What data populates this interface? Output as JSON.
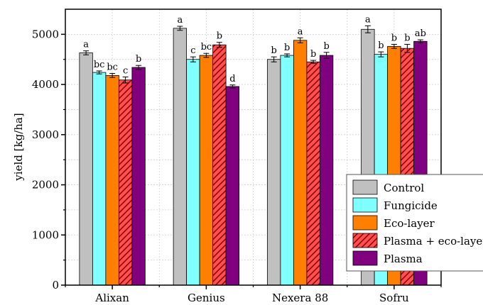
{
  "chart_data": {
    "type": "bar",
    "title": "",
    "xlabel": "",
    "ylabel": "yield [kg/ha]",
    "ylim": [
      0,
      5500
    ],
    "yticks": [
      0,
      1000,
      2000,
      3000,
      4000,
      5000
    ],
    "grid": true,
    "legend_position": "bottom-right",
    "categories": [
      "Alixan",
      "Genius",
      "Nexera 88",
      "Sofru"
    ],
    "series": [
      {
        "name": "Control",
        "color": "#c0c0c0",
        "pattern": "solid",
        "values": [
          4630,
          5120,
          4500,
          5100
        ],
        "errors": [
          40,
          40,
          50,
          70
        ],
        "letters": [
          "a",
          "a",
          "b",
          "a"
        ]
      },
      {
        "name": "Fungicide",
        "color": "#80ffff",
        "pattern": "solid",
        "values": [
          4240,
          4500,
          4580,
          4600
        ],
        "errors": [
          30,
          50,
          30,
          50
        ],
        "letters": [
          "bc",
          "c",
          "b",
          "b"
        ]
      },
      {
        "name": "Eco-layer",
        "color": "#ff8000",
        "pattern": "solid",
        "values": [
          4180,
          4580,
          4880,
          4760
        ],
        "errors": [
          40,
          40,
          50,
          40
        ],
        "letters": [
          "bc",
          "bc",
          "a",
          "b"
        ]
      },
      {
        "name": "Plasma + eco-layer",
        "color": "#ff5050",
        "pattern": "hatched",
        "values": [
          4090,
          4790,
          4450,
          4720
        ],
        "errors": [
          60,
          50,
          30,
          80
        ],
        "letters": [
          "c",
          "b",
          "b",
          "b"
        ]
      },
      {
        "name": "Plasma",
        "color": "#800080",
        "pattern": "solid",
        "values": [
          4340,
          3960,
          4580,
          4860
        ],
        "errors": [
          40,
          30,
          60,
          30
        ],
        "letters": [
          "b",
          "d",
          "b",
          "ab"
        ]
      }
    ]
  }
}
